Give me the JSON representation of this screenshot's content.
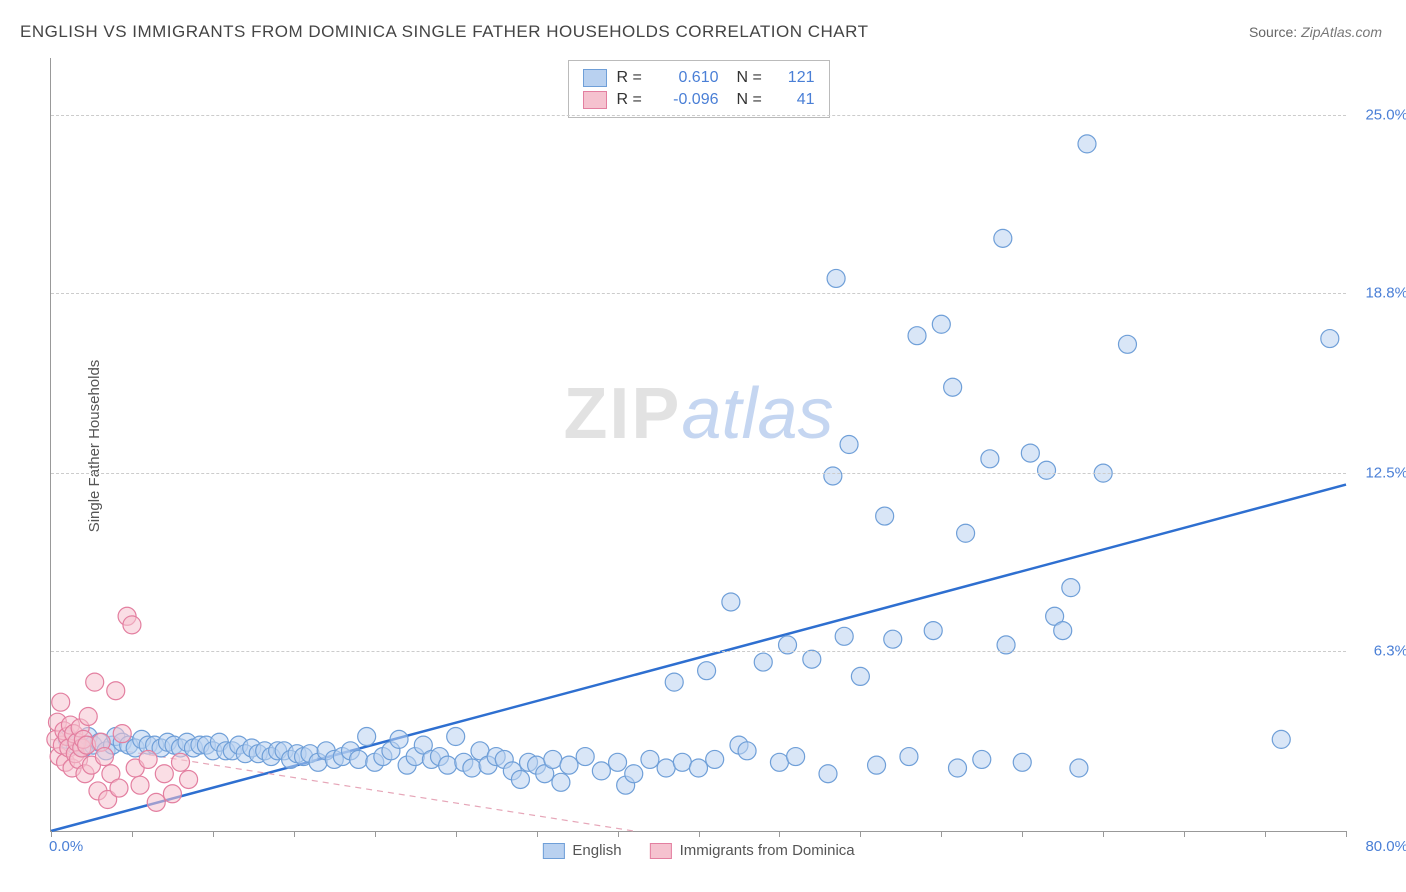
{
  "title": "ENGLISH VS IMMIGRANTS FROM DOMINICA SINGLE FATHER HOUSEHOLDS CORRELATION CHART",
  "source_label": "Source:",
  "source_value": "ZipAtlas.com",
  "ylabel": "Single Father Households",
  "watermark": {
    "part1": "ZIP",
    "part2": "atlas"
  },
  "chart": {
    "type": "scatter",
    "background_color": "#ffffff",
    "grid_color": "#cccccc",
    "axis_color": "#999999",
    "tick_label_color": "#4a7fd6",
    "xlim": [
      0,
      80
    ],
    "ylim": [
      0,
      27
    ],
    "x_origin_label": "0.0%",
    "x_max_label": "80.0%",
    "xtick_step": 5,
    "y_grid": [
      {
        "value": 6.3,
        "label": "6.3%"
      },
      {
        "value": 12.5,
        "label": "12.5%"
      },
      {
        "value": 18.8,
        "label": "18.8%"
      },
      {
        "value": 25.0,
        "label": "25.0%"
      }
    ],
    "marker_radius": 9,
    "marker_stroke_width": 1.2,
    "series": [
      {
        "name": "English",
        "fill": "#b9d1f0",
        "stroke": "#6f9fd8",
        "fill_opacity": 0.55,
        "stats": {
          "R": "0.610",
          "N": "121"
        },
        "trend": {
          "x1": 0,
          "y1": 0,
          "x2": 80,
          "y2": 12.1,
          "stroke": "#2e6fd0",
          "width": 2.5,
          "dash": ""
        },
        "points": [
          [
            1,
            3.2
          ],
          [
            1.5,
            3.0
          ],
          [
            2,
            2.9
          ],
          [
            2.3,
            3.3
          ],
          [
            2.6,
            3.0
          ],
          [
            3,
            3.1
          ],
          [
            3.4,
            2.8
          ],
          [
            3.8,
            3.0
          ],
          [
            4,
            3.3
          ],
          [
            4.4,
            3.1
          ],
          [
            4.8,
            3.0
          ],
          [
            5.2,
            2.9
          ],
          [
            5.6,
            3.2
          ],
          [
            6,
            3.0
          ],
          [
            6.4,
            3.0
          ],
          [
            6.8,
            2.9
          ],
          [
            7.2,
            3.1
          ],
          [
            7.6,
            3.0
          ],
          [
            8,
            2.9
          ],
          [
            8.4,
            3.1
          ],
          [
            8.8,
            2.9
          ],
          [
            9.2,
            3.0
          ],
          [
            9.6,
            3.0
          ],
          [
            10,
            2.8
          ],
          [
            10.4,
            3.1
          ],
          [
            10.8,
            2.8
          ],
          [
            11.2,
            2.8
          ],
          [
            11.6,
            3.0
          ],
          [
            12,
            2.7
          ],
          [
            12.4,
            2.9
          ],
          [
            12.8,
            2.7
          ],
          [
            13.2,
            2.8
          ],
          [
            13.6,
            2.6
          ],
          [
            14,
            2.8
          ],
          [
            14.4,
            2.8
          ],
          [
            14.8,
            2.5
          ],
          [
            15.2,
            2.7
          ],
          [
            15.6,
            2.6
          ],
          [
            16,
            2.7
          ],
          [
            16.5,
            2.4
          ],
          [
            17,
            2.8
          ],
          [
            17.5,
            2.5
          ],
          [
            18,
            2.6
          ],
          [
            18.5,
            2.8
          ],
          [
            19,
            2.5
          ],
          [
            19.5,
            3.3
          ],
          [
            20,
            2.4
          ],
          [
            20.5,
            2.6
          ],
          [
            21,
            2.8
          ],
          [
            21.5,
            3.2
          ],
          [
            22,
            2.3
          ],
          [
            22.5,
            2.6
          ],
          [
            23,
            3.0
          ],
          [
            23.5,
            2.5
          ],
          [
            24,
            2.6
          ],
          [
            24.5,
            2.3
          ],
          [
            25,
            3.3
          ],
          [
            25.5,
            2.4
          ],
          [
            26,
            2.2
          ],
          [
            26.5,
            2.8
          ],
          [
            27,
            2.3
          ],
          [
            27.5,
            2.6
          ],
          [
            28,
            2.5
          ],
          [
            28.5,
            2.1
          ],
          [
            29,
            1.8
          ],
          [
            29.5,
            2.4
          ],
          [
            30,
            2.3
          ],
          [
            30.5,
            2.0
          ],
          [
            31,
            2.5
          ],
          [
            31.5,
            1.7
          ],
          [
            32,
            2.3
          ],
          [
            33,
            2.6
          ],
          [
            34,
            2.1
          ],
          [
            35,
            2.4
          ],
          [
            35.5,
            1.6
          ],
          [
            36,
            2.0
          ],
          [
            37,
            2.5
          ],
          [
            38,
            2.2
          ],
          [
            38.5,
            5.2
          ],
          [
            39,
            2.4
          ],
          [
            40,
            2.2
          ],
          [
            40.5,
            5.6
          ],
          [
            41,
            2.5
          ],
          [
            42,
            8.0
          ],
          [
            42.5,
            3.0
          ],
          [
            43,
            2.8
          ],
          [
            44,
            5.9
          ],
          [
            45,
            2.4
          ],
          [
            45.5,
            6.5
          ],
          [
            46,
            2.6
          ],
          [
            47,
            6.0
          ],
          [
            48,
            2.0
          ],
          [
            48.3,
            12.4
          ],
          [
            48.5,
            19.3
          ],
          [
            49,
            6.8
          ],
          [
            49.3,
            13.5
          ],
          [
            50,
            5.4
          ],
          [
            51,
            2.3
          ],
          [
            51.5,
            11.0
          ],
          [
            52,
            6.7
          ],
          [
            53,
            2.6
          ],
          [
            53.5,
            17.3
          ],
          [
            54.5,
            7.0
          ],
          [
            55,
            17.7
          ],
          [
            55.7,
            15.5
          ],
          [
            56,
            2.2
          ],
          [
            56.5,
            10.4
          ],
          [
            57.5,
            2.5
          ],
          [
            58,
            13.0
          ],
          [
            58.8,
            20.7
          ],
          [
            59,
            6.5
          ],
          [
            60,
            2.4
          ],
          [
            60.5,
            13.2
          ],
          [
            61.5,
            12.6
          ],
          [
            62,
            7.5
          ],
          [
            62.5,
            7.0
          ],
          [
            63,
            8.5
          ],
          [
            63.5,
            2.2
          ],
          [
            64,
            24.0
          ],
          [
            65,
            12.5
          ],
          [
            66.5,
            17.0
          ],
          [
            76,
            3.2
          ],
          [
            79,
            17.2
          ]
        ]
      },
      {
        "name": "Immigrants from Dominica",
        "fill": "#f5c2cf",
        "stroke": "#e37fa0",
        "fill_opacity": 0.55,
        "stats": {
          "R": "-0.096",
          "N": "41"
        },
        "trend": {
          "x1": 0,
          "y1": 3.2,
          "x2": 36,
          "y2": 0,
          "stroke": "#e6a6b8",
          "width": 1.2,
          "dash": "6 5"
        },
        "points": [
          [
            0.3,
            3.2
          ],
          [
            0.4,
            3.8
          ],
          [
            0.5,
            2.6
          ],
          [
            0.6,
            4.5
          ],
          [
            0.7,
            3.0
          ],
          [
            0.8,
            3.5
          ],
          [
            0.9,
            2.4
          ],
          [
            1.0,
            3.3
          ],
          [
            1.1,
            2.9
          ],
          [
            1.2,
            3.7
          ],
          [
            1.3,
            2.2
          ],
          [
            1.4,
            3.4
          ],
          [
            1.5,
            2.7
          ],
          [
            1.6,
            3.1
          ],
          [
            1.7,
            2.5
          ],
          [
            1.8,
            3.6
          ],
          [
            1.9,
            2.9
          ],
          [
            2.0,
            3.2
          ],
          [
            2.1,
            2.0
          ],
          [
            2.2,
            3.0
          ],
          [
            2.3,
            4.0
          ],
          [
            2.5,
            2.3
          ],
          [
            2.7,
            5.2
          ],
          [
            2.9,
            1.4
          ],
          [
            3.1,
            3.1
          ],
          [
            3.3,
            2.6
          ],
          [
            3.5,
            1.1
          ],
          [
            3.7,
            2.0
          ],
          [
            4.0,
            4.9
          ],
          [
            4.2,
            1.5
          ],
          [
            4.4,
            3.4
          ],
          [
            4.7,
            7.5
          ],
          [
            5.0,
            7.2
          ],
          [
            5.2,
            2.2
          ],
          [
            5.5,
            1.6
          ],
          [
            6.0,
            2.5
          ],
          [
            6.5,
            1.0
          ],
          [
            7.0,
            2.0
          ],
          [
            7.5,
            1.3
          ],
          [
            8.0,
            2.4
          ],
          [
            8.5,
            1.8
          ]
        ]
      }
    ],
    "top_legend": {
      "r_label": "R =",
      "n_label": "N ="
    },
    "bottom_legend": {
      "items": [
        "English",
        "Immigrants from Dominica"
      ]
    }
  }
}
